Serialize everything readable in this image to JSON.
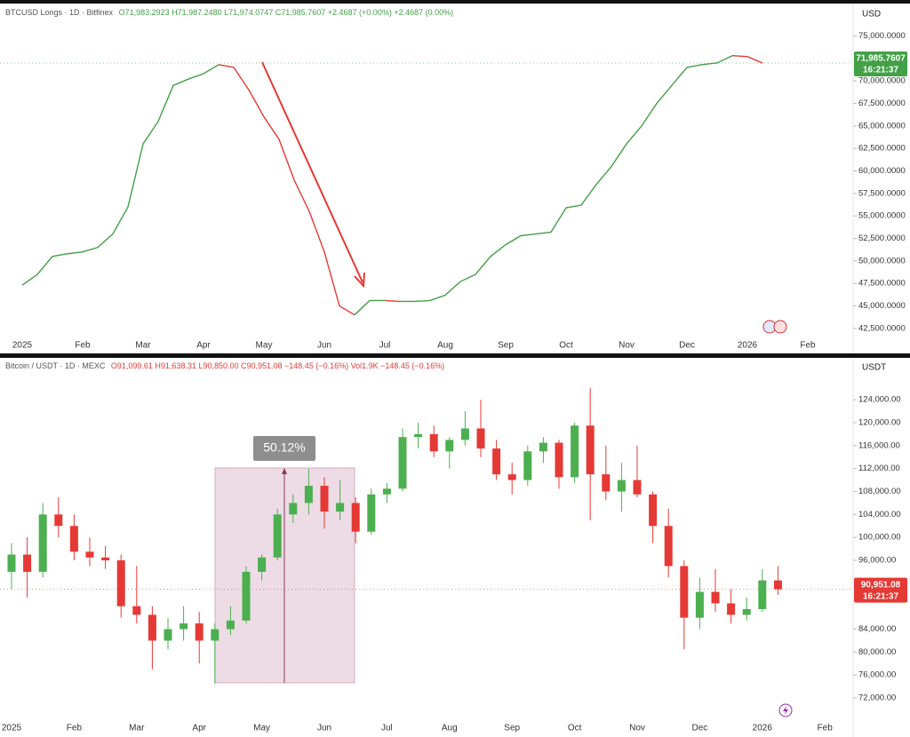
{
  "chart_data": [
    {
      "type": "line",
      "symbol": "BTCUSD Longs · 1D · Bitfinex",
      "ohlc": "O71,983.2923 H71,987.2480 L71,974.0747 C71,985.7607 +2.4687 (+0.00%) +2.4687 (0.00%)",
      "currency": "USD",
      "categories": [
        "2025",
        null,
        null,
        null,
        "Feb",
        null,
        null,
        null,
        "Mar",
        null,
        null,
        null,
        "Apr",
        null,
        null,
        null,
        "May",
        null,
        null,
        null,
        "Jun",
        null,
        null,
        null,
        "Jul",
        null,
        null,
        null,
        "Aug",
        null,
        null,
        null,
        "Sep",
        null,
        null,
        null,
        "Oct",
        null,
        null,
        null,
        "Nov",
        null,
        null,
        null,
        "Dec",
        null,
        null,
        null,
        "2026",
        null,
        null,
        null,
        "Feb"
      ],
      "values": [
        47300,
        48500,
        50500,
        50800,
        51000,
        51500,
        53000,
        56000,
        63000,
        65500,
        69500,
        70200,
        70800,
        71800,
        71500,
        69000,
        66000,
        63500,
        59000,
        55500,
        51000,
        45000,
        44000,
        45600,
        45600,
        45500,
        45500,
        45600,
        46200,
        47700,
        48500,
        50500,
        51800,
        52800,
        53000,
        53200,
        55900,
        56200,
        58500,
        60500,
        63000,
        65000,
        67500,
        69500,
        71500,
        71800,
        72000,
        72800,
        72700,
        71985.7607,
        null,
        null,
        null
      ],
      "up_color": "#43a047",
      "down_color": "#e53935",
      "ylim": [
        41700,
        78000
      ],
      "yticks": [
        {
          "value": 42500,
          "label": "42,500.0000"
        },
        {
          "value": 45000,
          "label": "45,000.0000"
        },
        {
          "value": 47500,
          "label": "47,500.0000"
        },
        {
          "value": 50000,
          "label": "50,000.0000"
        },
        {
          "value": 52500,
          "label": "52,500.0000"
        },
        {
          "value": 55000,
          "label": "55,000.0000"
        },
        {
          "value": 57500,
          "label": "57,500.0000"
        },
        {
          "value": 60000,
          "label": "60,000.0000"
        },
        {
          "value": 62500,
          "label": "62,500.0000"
        },
        {
          "value": 65000,
          "label": "65,000.0000"
        },
        {
          "value": 67500,
          "label": "67,500.0000"
        },
        {
          "value": 70000,
          "label": "70,000.0000"
        },
        {
          "value": 75000,
          "label": "75,000.0000"
        }
      ],
      "last_price": {
        "value": 71985.7607,
        "label": "71,985.7607"
      },
      "countdown": "16:21:37",
      "tag_color": "#43a047"
    },
    {
      "type": "candlestick",
      "symbol": "Bitcoin / USDT · 1D · MEXC",
      "ohlc": "O91,099.61 H91,638.31 L90,850.00 C90,951.08 −148.45 (−0.16%) Vol1.9K −148.45 (−0.16%)",
      "currency": "USDT",
      "categories": [
        "2025",
        null,
        null,
        null,
        "Feb",
        null,
        null,
        null,
        "Mar",
        null,
        null,
        null,
        "Apr",
        null,
        null,
        null,
        "May",
        null,
        null,
        null,
        "Jun",
        null,
        null,
        null,
        "Jul",
        null,
        null,
        null,
        "Aug",
        null,
        null,
        null,
        "Sep",
        null,
        null,
        null,
        "Oct",
        null,
        null,
        null,
        "Nov",
        null,
        null,
        null,
        "Dec",
        null,
        null,
        null,
        "2026",
        null,
        null,
        null,
        "Feb"
      ],
      "open": [
        94000,
        97000,
        94000,
        104000,
        102000,
        97500,
        96500,
        96000,
        88000,
        86500,
        82000,
        84000,
        85000,
        82000,
        84000,
        85500,
        94000,
        96500,
        104000,
        106000,
        109000,
        104500,
        106000,
        101000,
        107500,
        108500,
        117500,
        118000,
        115000,
        117000,
        119000,
        115500,
        111000,
        110000,
        115000,
        116500,
        110500,
        119500,
        111000,
        108000,
        110000,
        107500,
        102000,
        95000,
        86000,
        90500,
        88500,
        86500,
        87500,
        92500,
        null,
        null,
        null
      ],
      "high": [
        99000,
        100000,
        106000,
        107000,
        104000,
        100000,
        98500,
        97000,
        95000,
        88000,
        86000,
        88000,
        87000,
        85000,
        88000,
        95000,
        97000,
        105000,
        107500,
        112000,
        110500,
        110000,
        107000,
        108500,
        109500,
        119000,
        120000,
        119500,
        117500,
        122000,
        124000,
        117000,
        113000,
        116000,
        117500,
        117000,
        120000,
        126000,
        116000,
        113000,
        116000,
        108000,
        105000,
        96000,
        93000,
        94500,
        91000,
        89500,
        94500,
        95000,
        null,
        null,
        null
      ],
      "low": [
        91000,
        89500,
        93000,
        100000,
        96000,
        95000,
        94500,
        86000,
        85000,
        77000,
        80500,
        82000,
        78000,
        74500,
        83000,
        85000,
        92500,
        96000,
        102500,
        104000,
        101500,
        103000,
        99000,
        100500,
        106000,
        108000,
        115500,
        114000,
        112000,
        116000,
        114000,
        110000,
        107500,
        109000,
        113000,
        108500,
        109500,
        103000,
        106500,
        104500,
        107000,
        99000,
        93000,
        80500,
        84000,
        87000,
        85000,
        85500,
        87000,
        90000,
        null,
        null,
        null
      ],
      "close": [
        97000,
        94000,
        104000,
        102000,
        97500,
        96500,
        96000,
        88000,
        86500,
        82000,
        84000,
        85000,
        82000,
        84000,
        85500,
        94000,
        96500,
        104000,
        106000,
        109000,
        104500,
        106000,
        101000,
        107500,
        108500,
        117500,
        118000,
        115000,
        117000,
        119000,
        115500,
        111000,
        110000,
        115000,
        116500,
        110500,
        119500,
        111000,
        108000,
        110000,
        107500,
        102000,
        95000,
        86000,
        90500,
        88500,
        86500,
        87500,
        92500,
        90951.08,
        null,
        null,
        null
      ],
      "up_color": "#4caf50",
      "down_color": "#e53935",
      "ylim": [
        68600,
        131000
      ],
      "yticks": [
        {
          "value": 72000,
          "label": "72,000.00"
        },
        {
          "value": 76000,
          "label": "76,000.00"
        },
        {
          "value": 80000,
          "label": "80,000.00"
        },
        {
          "value": 84000,
          "label": "84,000.00"
        },
        {
          "value": 96000,
          "label": "96,000.00"
        },
        {
          "value": 100000,
          "label": "100,000.00"
        },
        {
          "value": 104000,
          "label": "104,000.00"
        },
        {
          "value": 108000,
          "label": "108,000.00"
        },
        {
          "value": 112000,
          "label": "112,000.00"
        },
        {
          "value": 116000,
          "label": "116,000.00"
        },
        {
          "value": 120000,
          "label": "120,000.00"
        },
        {
          "value": 124000,
          "label": "124,000.00"
        }
      ],
      "last_price": {
        "value": 90951.08,
        "label": "90,951.08"
      },
      "countdown": "16:21:37",
      "tag_color": "#e53935",
      "measure_label": "50.12%"
    }
  ]
}
